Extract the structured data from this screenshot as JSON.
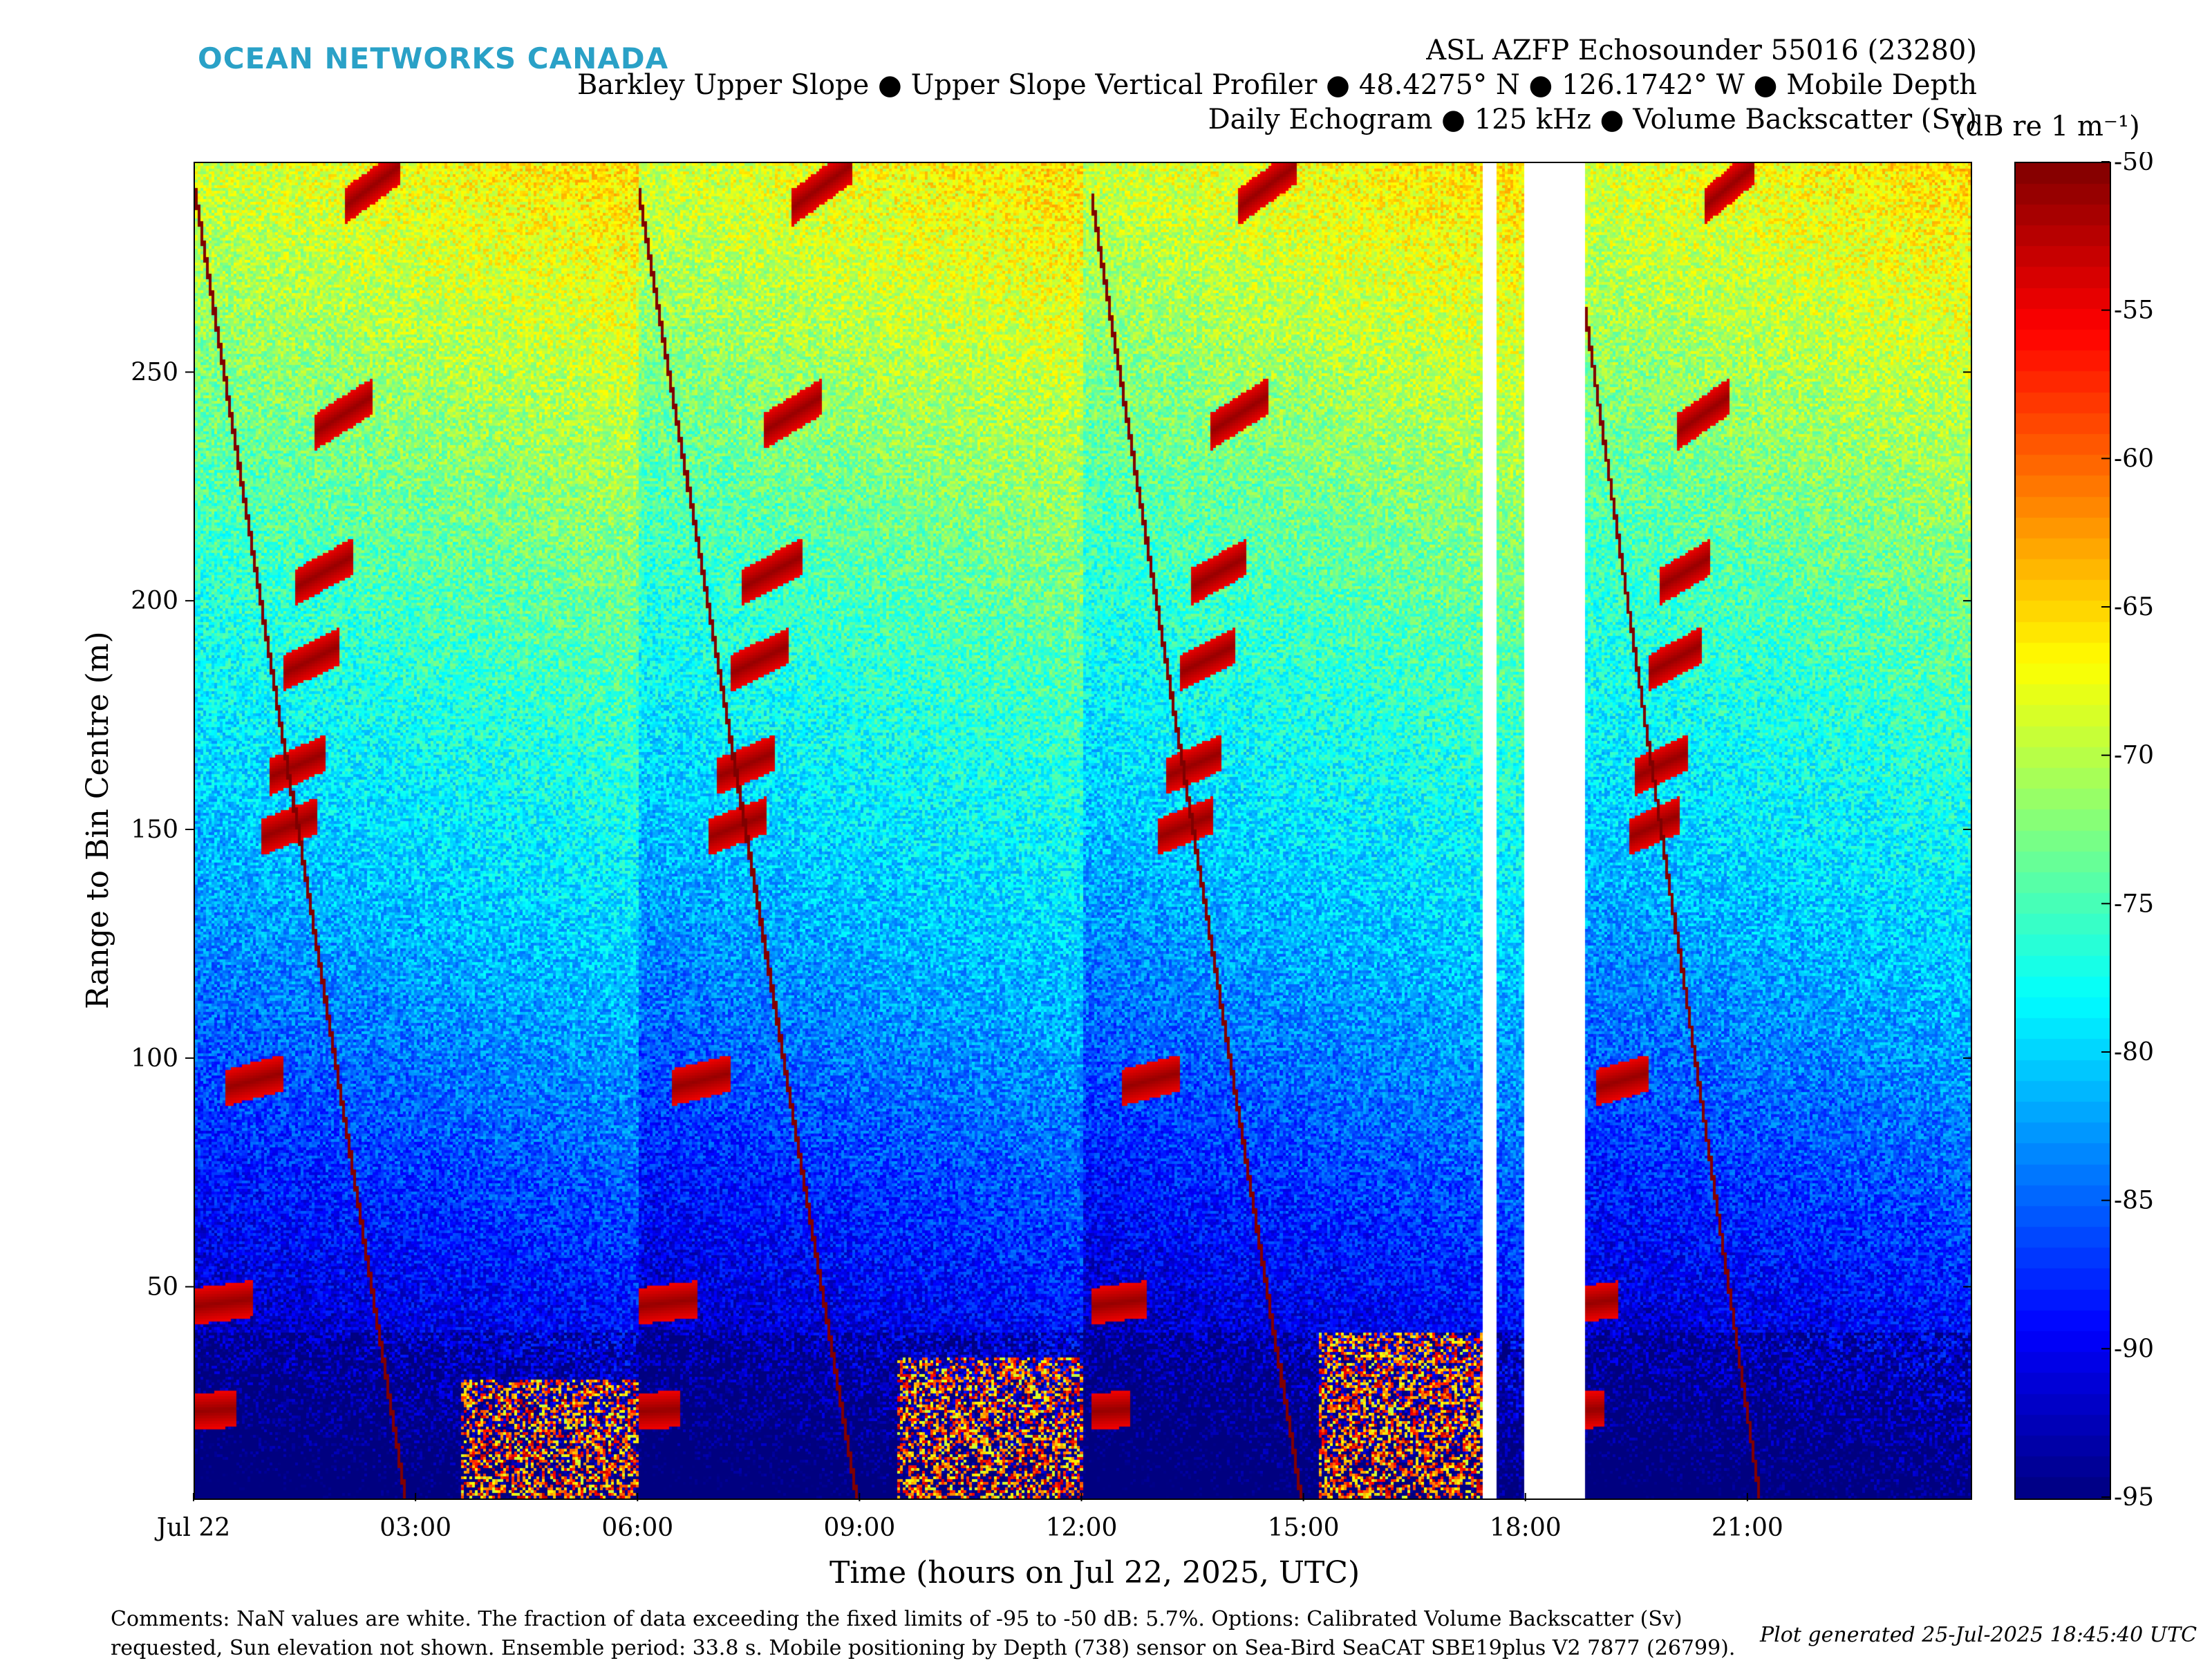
{
  "brand": "OCEAN NETWORKS CANADA",
  "colors": {
    "brand": "#2aa1c7",
    "nan": "#ffffff",
    "frame": "#000000"
  },
  "title": {
    "line1": "ASL AZFP Echosounder 55016 (23280)",
    "line2": "Barkley Upper Slope ● Upper Slope Vertical Profiler ● 48.4275° N ● 126.1742° W ● Mobile Depth",
    "line3": "Daily Echogram ● 125 kHz ● Volume Backscatter (Sv)"
  },
  "colorbar_unit": "(dB re 1 m⁻¹)",
  "comments": {
    "line1": "Comments: NaN values are white. The fraction of data exceeding the fixed limits of -95 to -50 dB: 5.7%. Options: Calibrated Volume Backscatter (Sv)",
    "line2": "requested, Sun elevation not shown. Ensemble period: 33.8 s. Mobile positioning by Depth (738) sensor on Sea-Bird SeaCAT SBE19plus V2 7877 (26799)."
  },
  "generated": "Plot generated 25-Jul-2025 18:45:40 UTC",
  "chart_data": {
    "type": "heatmap",
    "title": "Daily Echogram ● 125 kHz ● Volume Backscatter (Sv)",
    "xlabel": "Time (hours on Jul 22, 2025, UTC)",
    "ylabel": "Range to Bin Centre (m)",
    "x_ticks": [
      {
        "hour": 0,
        "label": "Jul 22"
      },
      {
        "hour": 3,
        "label": "03:00"
      },
      {
        "hour": 6,
        "label": "06:00"
      },
      {
        "hour": 9,
        "label": "09:00"
      },
      {
        "hour": 12,
        "label": "12:00"
      },
      {
        "hour": 15,
        "label": "15:00"
      },
      {
        "hour": 18,
        "label": "18:00"
      },
      {
        "hour": 21,
        "label": "21:00"
      }
    ],
    "xlim": [
      0,
      24
    ],
    "y_ticks": [
      50,
      100,
      150,
      200,
      250
    ],
    "ylim": [
      4,
      296
    ],
    "colorbar": {
      "label": "(dB re 1 m⁻¹)",
      "limits": [
        -95,
        -50
      ],
      "ticks": [
        -50,
        -55,
        -60,
        -65,
        -70,
        -75,
        -80,
        -85,
        -90,
        -95
      ],
      "colormap": "jet"
    },
    "nan_gaps_hours": [
      [
        17.4,
        17.6
      ],
      [
        17.98,
        18.78
      ]
    ],
    "profiles": [
      {
        "start_hour": 0.0,
        "end_hour": 2.85
      },
      {
        "start_hour": 6.0,
        "end_hour": 8.95
      },
      {
        "start_hour": 12.1,
        "end_hour": 14.95
      },
      {
        "start_hour": 18.55,
        "end_hour": 21.15
      }
    ],
    "strong_scattering_layers_m": [
      25,
      50,
      100,
      155,
      168,
      190,
      208,
      240,
      285
    ],
    "fraction_exceeding_limits_pct": 5.7,
    "frequency_khz": 125,
    "ensemble_period_s": 33.8
  }
}
